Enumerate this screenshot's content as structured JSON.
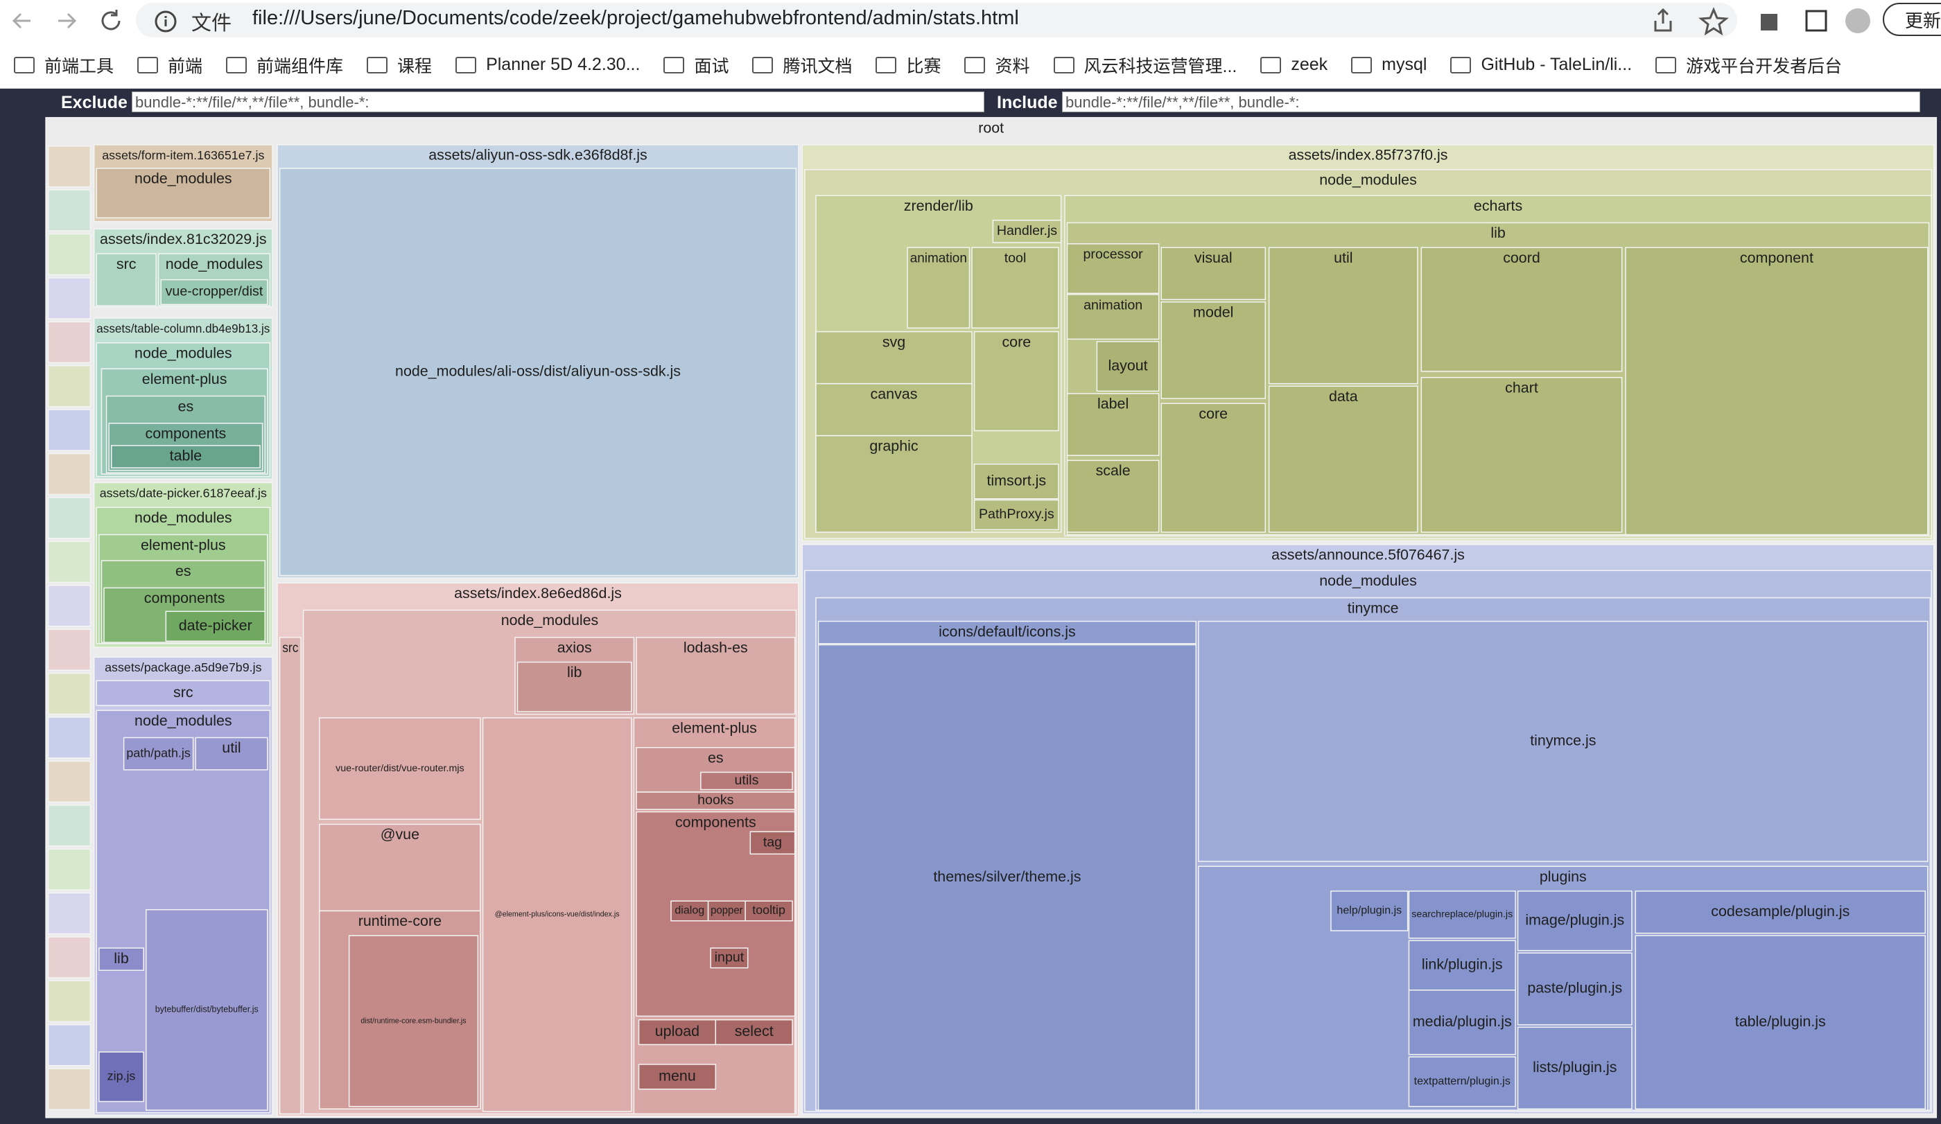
{
  "browser": {
    "scheme": "文件",
    "url": "file:///Users/june/Documents/code/zeek/project/gamehubwebfrontend/admin/stats.html",
    "update": "更新"
  },
  "bookmarks": [
    "前端工具",
    "前端",
    "前端组件库",
    "课程",
    "Planner 5D 4.2.30...",
    "面试",
    "腾讯文档",
    "比赛",
    "资料",
    "风云科技运营管理...",
    "zeek",
    "mysql",
    "GitHub - TaleLin/li...",
    "游戏平台开发者后台"
  ],
  "filters": {
    "exclude_label": "Exclude",
    "exclude_value": "bundle-*:**/file/**,**/file**, bundle-*:",
    "include_label": "Include",
    "include_value": "bundle-*:**/file/**,**/file**, bundle-*:"
  },
  "treemap": {
    "nodes": [
      {
        "label": "root"
      },
      {
        "label": "assets/form-item.163651e7.js"
      },
      {
        "label": "node_modules"
      },
      {
        "label": "assets/index.81c32029.js"
      },
      {
        "label": "src"
      },
      {
        "label": "node_modules"
      },
      {
        "label": "vue-cropper/dist"
      },
      {
        "label": "assets/table-column.db4e9b13.js"
      },
      {
        "label": "node_modules"
      },
      {
        "label": "element-plus"
      },
      {
        "label": "es"
      },
      {
        "label": "components"
      },
      {
        "label": "table"
      },
      {
        "label": "assets/date-picker.6187eeaf.js"
      },
      {
        "label": "node_modules"
      },
      {
        "label": "element-plus"
      },
      {
        "label": "es"
      },
      {
        "label": "components"
      },
      {
        "label": "date-picker"
      },
      {
        "label": "assets/package.a5d9e7b9.js"
      },
      {
        "label": "src"
      },
      {
        "label": "node_modules"
      },
      {
        "label": "path/path.js"
      },
      {
        "label": "util"
      },
      {
        "label": "bytebuffer/dist/bytebuffer.js"
      },
      {
        "label": "lib"
      },
      {
        "label": "zip.js"
      },
      {
        "label": "assets/aliyun-oss-sdk.e36f8d8f.js"
      },
      {
        "label": "node_modules/ali-oss/dist/aliyun-oss-sdk.js"
      },
      {
        "label": "assets/index.8e6ed86d.js"
      },
      {
        "label": "node_modules"
      },
      {
        "label": "src"
      },
      {
        "label": "axios"
      },
      {
        "label": "lib"
      },
      {
        "label": "lodash-es"
      },
      {
        "label": "vue-router/dist/vue-router.mjs"
      },
      {
        "label": "@vue"
      },
      {
        "label": "runtime-core"
      },
      {
        "label": "dist/runtime-core.esm-bundler.js"
      },
      {
        "label": "@element-plus/icons-vue/dist/index.js"
      },
      {
        "label": "element-plus"
      },
      {
        "label": "es"
      },
      {
        "label": "utils"
      },
      {
        "label": "hooks"
      },
      {
        "label": "components"
      },
      {
        "label": "tag"
      },
      {
        "label": "dialog"
      },
      {
        "label": "popper"
      },
      {
        "label": "tooltip"
      },
      {
        "label": "input"
      },
      {
        "label": "upload"
      },
      {
        "label": "select"
      },
      {
        "label": "menu"
      },
      {
        "label": "assets/index.85f737f0.js"
      },
      {
        "label": "node_modules"
      },
      {
        "label": "zrender/lib"
      },
      {
        "label": "Handler.js"
      },
      {
        "label": "animation"
      },
      {
        "label": "tool"
      },
      {
        "label": "svg"
      },
      {
        "label": "core"
      },
      {
        "label": "canvas"
      },
      {
        "label": "graphic"
      },
      {
        "label": "timsort.js"
      },
      {
        "label": "PathProxy.js"
      },
      {
        "label": "echarts"
      },
      {
        "label": "lib"
      },
      {
        "label": "processor"
      },
      {
        "label": "animation"
      },
      {
        "label": "layout"
      },
      {
        "label": "label"
      },
      {
        "label": "scale"
      },
      {
        "label": "visual"
      },
      {
        "label": "model"
      },
      {
        "label": "core"
      },
      {
        "label": "util"
      },
      {
        "label": "data"
      },
      {
        "label": "coord"
      },
      {
        "label": "chart"
      },
      {
        "label": "component"
      },
      {
        "label": "assets/announce.5f076467.js"
      },
      {
        "label": "node_modules"
      },
      {
        "label": "tinymce"
      },
      {
        "label": "icons/default/icons.js"
      },
      {
        "label": "themes/silver/theme.js"
      },
      {
        "label": "tinymce.js"
      },
      {
        "label": "plugins"
      },
      {
        "label": "help/plugin.js"
      },
      {
        "label": "searchreplace/plugin.js"
      },
      {
        "label": "link/plugin.js"
      },
      {
        "label": "media/plugin.js"
      },
      {
        "label": "textpattern/plugin.js"
      },
      {
        "label": "image/plugin.js"
      },
      {
        "label": "paste/plugin.js"
      },
      {
        "label": "lists/plugin.js"
      },
      {
        "label": "codesample/plugin.js"
      },
      {
        "label": "table/plugin.js"
      }
    ]
  }
}
